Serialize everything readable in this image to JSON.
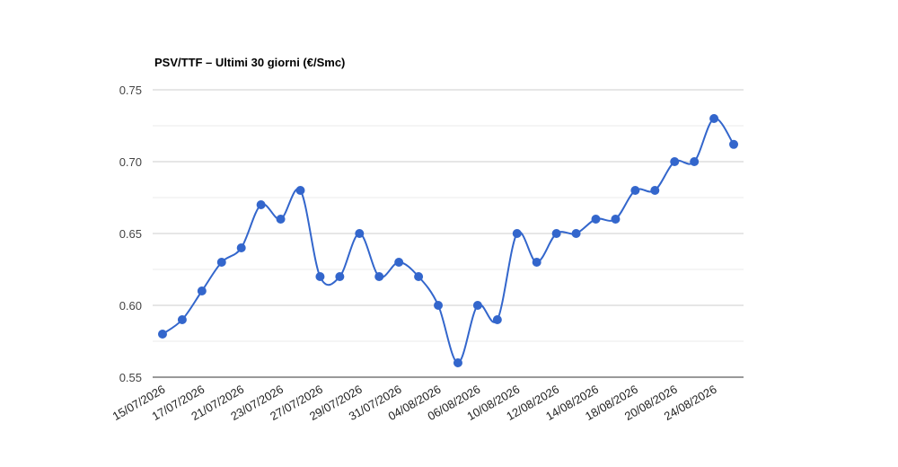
{
  "chart_data": {
    "type": "line",
    "title": "PSV/TTF – Ultimi 30 giorni (€/Smc)",
    "categories": [
      "15/07/2026",
      null,
      "17/07/2026",
      null,
      "21/07/2026",
      null,
      "23/07/2026",
      null,
      "27/07/2026",
      null,
      "29/07/2026",
      null,
      "31/07/2026",
      null,
      "04/08/2026",
      null,
      "06/08/2026",
      null,
      "10/08/2026",
      null,
      "12/08/2026",
      null,
      "14/08/2026",
      null,
      "18/08/2026",
      null,
      "20/08/2026",
      null,
      "24/08/2026",
      null
    ],
    "series": [
      {
        "name": "PSV/TTF",
        "color": "#3366cc",
        "values": [
          0.58,
          0.59,
          0.61,
          0.63,
          0.64,
          0.67,
          0.66,
          0.68,
          0.62,
          0.62,
          0.65,
          0.62,
          0.63,
          0.62,
          0.6,
          0.56,
          0.6,
          0.59,
          0.65,
          0.63,
          0.65,
          0.65,
          0.66,
          0.66,
          0.68,
          0.68,
          0.7,
          0.7,
          0.73,
          0.712
        ]
      }
    ],
    "ylim": [
      0.55,
      0.75
    ],
    "yticks": [
      0.55,
      {
        "value": 0.6,
        "label": "0.60"
      },
      0.65,
      {
        "value": 0.7,
        "label": "0.70"
      },
      0.75
    ],
    "minor_yticks": [
      0.575,
      0.625,
      0.675,
      0.725
    ],
    "grid": true,
    "smooth": true
  }
}
